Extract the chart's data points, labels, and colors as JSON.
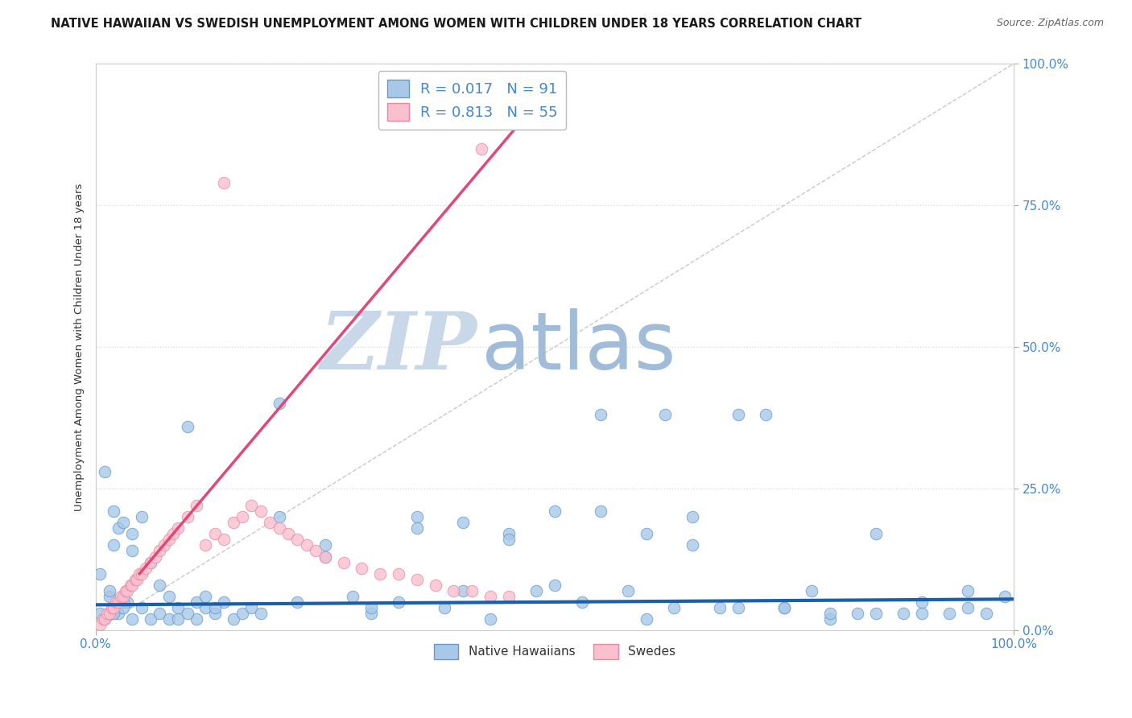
{
  "title": "NATIVE HAWAIIAN VS SWEDISH UNEMPLOYMENT AMONG WOMEN WITH CHILDREN UNDER 18 YEARS CORRELATION CHART",
  "source": "Source: ZipAtlas.com",
  "ylabel": "Unemployment Among Women with Children Under 18 years",
  "xlim": [
    0,
    1.0
  ],
  "ylim": [
    0,
    1.0
  ],
  "ytick_vals": [
    0.0,
    0.25,
    0.5,
    0.75,
    1.0
  ],
  "ytick_labels": [
    "0.0%",
    "25.0%",
    "50.0%",
    "75.0%",
    "100.0%"
  ],
  "xtick_vals": [
    0.0,
    1.0
  ],
  "xtick_labels": [
    "0.0%",
    "100.0%"
  ],
  "series1_label": "Native Hawaiians",
  "series1_color": "#a8c8e8",
  "series1_edge_color": "#6699cc",
  "series1_R": "0.017",
  "series1_N": "91",
  "series2_label": "Swedes",
  "series2_color": "#f9c0ce",
  "series2_edge_color": "#e888a8",
  "series2_R": "0.813",
  "series2_N": "55",
  "regression1_color": "#1a5fa8",
  "regression2_color": "#e04878",
  "diagonal_color": "#c8c8c8",
  "watermark_zip": "ZIP",
  "watermark_atlas": "atlas",
  "watermark_zip_color": "#c8d8e8",
  "watermark_atlas_color": "#a0bcd8",
  "grid_color": "#d8d8d8",
  "tick_color": "#4488cc",
  "background_color": "#ffffff",
  "title_fontsize": 10.5,
  "legend_fontsize": 13,
  "regression1_y0": 0.045,
  "regression1_y1": 0.055,
  "regression2_x0": 0.048,
  "regression2_y0": 0.1,
  "regression2_x1": 0.475,
  "regression2_y1": 0.92,
  "nh_x": [
    0.015,
    0.025,
    0.035,
    0.01,
    0.02,
    0.04,
    0.005,
    0.015,
    0.025,
    0.03,
    0.005,
    0.01,
    0.02,
    0.03,
    0.04,
    0.05,
    0.06,
    0.07,
    0.08,
    0.09,
    0.1,
    0.11,
    0.12,
    0.13,
    0.14,
    0.15,
    0.16,
    0.17,
    0.02,
    0.03,
    0.04,
    0.05,
    0.06,
    0.07,
    0.08,
    0.09,
    0.1,
    0.11,
    0.12,
    0.13,
    0.18,
    0.2,
    0.22,
    0.25,
    0.28,
    0.3,
    0.33,
    0.35,
    0.38,
    0.4,
    0.43,
    0.45,
    0.48,
    0.5,
    0.53,
    0.55,
    0.58,
    0.6,
    0.63,
    0.65,
    0.68,
    0.7,
    0.73,
    0.75,
    0.78,
    0.8,
    0.83,
    0.85,
    0.88,
    0.9,
    0.93,
    0.95,
    0.97,
    0.99,
    0.55,
    0.62,
    0.7,
    0.4,
    0.45,
    0.2,
    0.25,
    0.3,
    0.35,
    0.5,
    0.6,
    0.65,
    0.75,
    0.8,
    0.85,
    0.9,
    0.95
  ],
  "nh_y": [
    0.06,
    0.18,
    0.05,
    0.28,
    0.21,
    0.14,
    0.1,
    0.07,
    0.03,
    0.05,
    0.03,
    0.02,
    0.03,
    0.04,
    0.02,
    0.04,
    0.02,
    0.03,
    0.02,
    0.02,
    0.36,
    0.02,
    0.04,
    0.03,
    0.05,
    0.02,
    0.03,
    0.04,
    0.15,
    0.19,
    0.17,
    0.2,
    0.12,
    0.08,
    0.06,
    0.04,
    0.03,
    0.05,
    0.06,
    0.04,
    0.03,
    0.4,
    0.05,
    0.15,
    0.06,
    0.03,
    0.05,
    0.2,
    0.04,
    0.19,
    0.02,
    0.17,
    0.07,
    0.08,
    0.05,
    0.21,
    0.07,
    0.02,
    0.04,
    0.2,
    0.04,
    0.04,
    0.38,
    0.04,
    0.07,
    0.02,
    0.03,
    0.17,
    0.03,
    0.05,
    0.03,
    0.04,
    0.03,
    0.06,
    0.38,
    0.38,
    0.38,
    0.07,
    0.16,
    0.2,
    0.13,
    0.04,
    0.18,
    0.21,
    0.17,
    0.15,
    0.04,
    0.03,
    0.03,
    0.03,
    0.07
  ],
  "sw_x": [
    0.005,
    0.008,
    0.01,
    0.013,
    0.015,
    0.018,
    0.02,
    0.022,
    0.025,
    0.028,
    0.03,
    0.033,
    0.035,
    0.038,
    0.04,
    0.043,
    0.045,
    0.048,
    0.05,
    0.055,
    0.06,
    0.065,
    0.07,
    0.075,
    0.08,
    0.085,
    0.09,
    0.1,
    0.11,
    0.12,
    0.13,
    0.14,
    0.15,
    0.16,
    0.17,
    0.18,
    0.19,
    0.2,
    0.21,
    0.22,
    0.23,
    0.24,
    0.25,
    0.27,
    0.29,
    0.31,
    0.33,
    0.35,
    0.37,
    0.39,
    0.41,
    0.43,
    0.45,
    0.14,
    0.42
  ],
  "sw_y": [
    0.01,
    0.02,
    0.02,
    0.03,
    0.03,
    0.04,
    0.04,
    0.05,
    0.05,
    0.06,
    0.06,
    0.07,
    0.07,
    0.08,
    0.08,
    0.09,
    0.09,
    0.1,
    0.1,
    0.11,
    0.12,
    0.13,
    0.14,
    0.15,
    0.16,
    0.17,
    0.18,
    0.2,
    0.22,
    0.15,
    0.17,
    0.16,
    0.19,
    0.2,
    0.22,
    0.21,
    0.19,
    0.18,
    0.17,
    0.16,
    0.15,
    0.14,
    0.13,
    0.12,
    0.11,
    0.1,
    0.1,
    0.09,
    0.08,
    0.07,
    0.07,
    0.06,
    0.06,
    0.79,
    0.85
  ]
}
